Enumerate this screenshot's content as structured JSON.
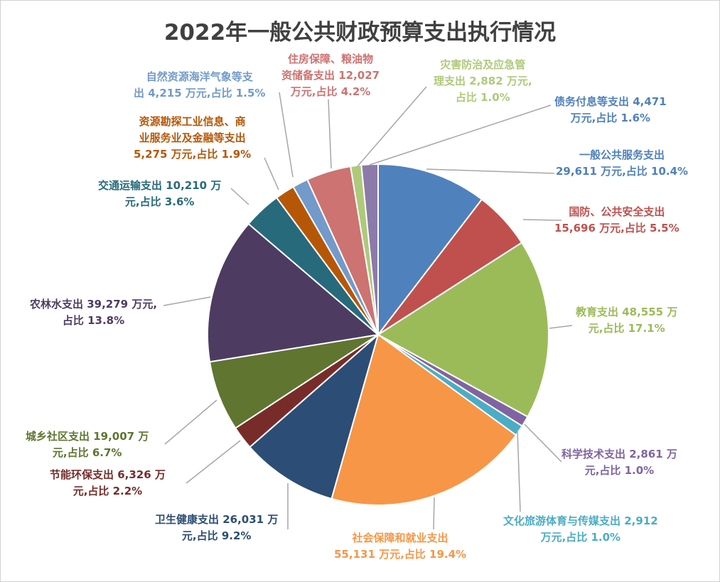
{
  "chart_data": {
    "type": "pie",
    "title": "2022年一般公共财政预算支出执行情况",
    "slices": [
      {
        "category": "一般公共服务支出",
        "value": 29611,
        "value_label": "29,611",
        "unit": "万元",
        "percent_label": "占比 10.4%",
        "color": "#4f81bd",
        "label_color": "#4f81bd",
        "line1": "一般公共服务支出",
        "line2": "29,611 万元,占比 10.4%"
      },
      {
        "category": "国防、公共安全支出",
        "value": 15696,
        "value_label": "15,696",
        "unit": "万元",
        "percent_label": "占比 5.5%",
        "color": "#c0504d",
        "label_color": "#c0504d",
        "line1": "国防、公共安全支出",
        "line2": "15,696 万元,占比 5.5%"
      },
      {
        "category": "教育支出",
        "value": 48555,
        "value_label": "48,555",
        "unit": "万元",
        "percent_label": "占比 17.1%",
        "color": "#9bbb59",
        "label_color": "#9bbb59",
        "line1": "教育支出 48,555 万",
        "line2": "元,占比 17.1%"
      },
      {
        "category": "科学技术支出",
        "value": 2861,
        "value_label": "2,861",
        "unit": "万元",
        "percent_label": "占比 1.0%",
        "color": "#8064a2",
        "label_color": "#8064a2",
        "line1": "科学技术支出 2,861 万",
        "line2": "元,占比 1.0%"
      },
      {
        "category": "文化旅游体育与传媒支出",
        "value": 2912,
        "value_label": "2,912",
        "unit": "万元",
        "percent_label": "占比 1.0%",
        "color": "#4bacc6",
        "label_color": "#4bacc6",
        "line1": "文化旅游体育与传媒支出 2,912",
        "line2": "万元,占比 1.0%"
      },
      {
        "category": "社会保障和就业支出",
        "value": 55131,
        "value_label": "55,131",
        "unit": "万元",
        "percent_label": "占比 19.4%",
        "color": "#f79646",
        "label_color": "#f79646",
        "line1": "社会保障和就业支出",
        "line2": "55,131 万元,占比 19.4%"
      },
      {
        "category": "卫生健康支出",
        "value": 26031,
        "value_label": "26,031",
        "unit": "万元",
        "percent_label": "占比 9.2%",
        "color": "#2c4d75",
        "label_color": "#2c4d75",
        "line1": "卫生健康支出 26,031 万",
        "line2": "元,占比 9.2%"
      },
      {
        "category": "节能环保支出",
        "value": 6326,
        "value_label": "6,326",
        "unit": "万元",
        "percent_label": "占比 2.2%",
        "color": "#772c2a",
        "label_color": "#772c2a",
        "line1": "节能环保支出 6,326 万",
        "line2": "元,占比 2.2%"
      },
      {
        "category": "城乡社区支出",
        "value": 19007,
        "value_label": "19,007",
        "unit": "万元",
        "percent_label": "占比 6.7%",
        "color": "#5f7530",
        "label_color": "#5f7530",
        "line1": "城乡社区支出 19,007 万",
        "line2": "元,占比 6.7%"
      },
      {
        "category": "农林水支出",
        "value": 39279,
        "value_label": "39,279",
        "unit": "万元",
        "percent_label": "占比 13.8%",
        "color": "#4d3b62",
        "label_color": "#4d3b62",
        "line1": "农林水支出 39,279 万元,",
        "line2": "占比 13.8%"
      },
      {
        "category": "交通运输支出",
        "value": 10210,
        "value_label": "10,210",
        "unit": "万元",
        "percent_label": "占比 3.6%",
        "color": "#276a7c",
        "label_color": "#276a7c",
        "line1": "交通运输支出 10,210 万",
        "line2": "元,占比 3.6%"
      },
      {
        "category": "资源勘探工业信息、商业服务业及金融等支出",
        "value": 5275,
        "value_label": "5,275",
        "unit": "万元",
        "percent_label": "占比 1.9%",
        "color": "#b65708",
        "label_color": "#b65708",
        "line1": "资源勘探工业信息、商",
        "line2": "业服务业及金融等支出",
        "line3": "5,275 万元,占比 1.9%"
      },
      {
        "category": "自然资源海洋气象等支出",
        "value": 4215,
        "value_label": "4,215",
        "unit": "万元",
        "percent_label": "占比 1.5%",
        "color": "#729aca",
        "label_color": "#729aca",
        "line1": "自然资源海洋气象等支",
        "line2": "出 4,215 万元,占比 1.5%"
      },
      {
        "category": "住房保障、粮油物资储备支出",
        "value": 12027,
        "value_label": "12,027",
        "unit": "万元",
        "percent_label": "占比 4.2%",
        "color": "#cd7371",
        "label_color": "#cd7371",
        "line1": "住房保障、粮油物",
        "line2": "资储备支出 12,027",
        "line3": "万元,占比 4.2%"
      },
      {
        "category": "灾害防治及应急管理支出",
        "value": 2882,
        "value_label": "2,882",
        "unit": "万元",
        "percent_label": "占比 1.0%",
        "color": "#afc97a",
        "label_color": "#afc97a",
        "line1": "灾害防治及应急管",
        "line2": "理支出 2,882 万元,",
        "line3": "占比 1.0%"
      },
      {
        "category": "债务付息等支出",
        "value": 4471,
        "value_label": "4,471",
        "unit": "万元",
        "percent_label": "占比 1.6%",
        "color": "#8c7aa9",
        "label_color": "#4f81bd",
        "line1": "债务付息等支出 4,471",
        "line2": "万元,占比 1.6%"
      }
    ]
  }
}
